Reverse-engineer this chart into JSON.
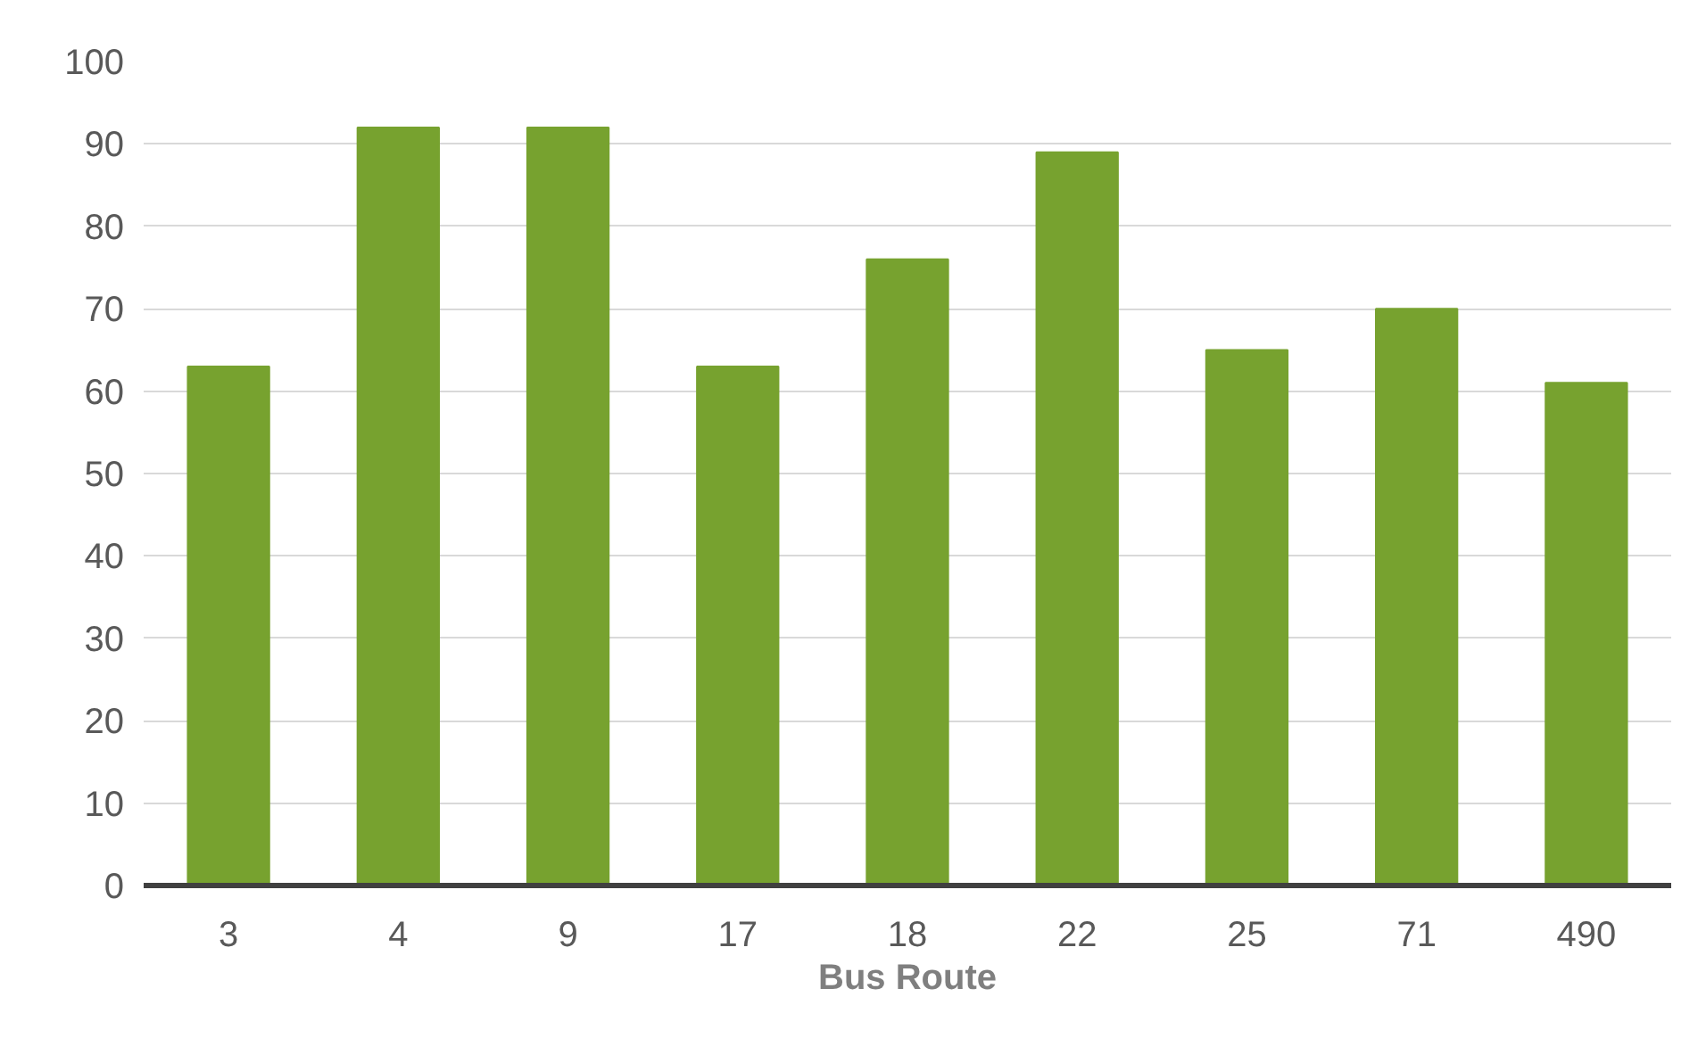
{
  "chart_data": {
    "type": "bar",
    "xlabel": "Bus Route",
    "categories": [
      "3",
      "4",
      "9",
      "17",
      "18",
      "22",
      "25",
      "71",
      "490"
    ],
    "values": [
      63,
      92,
      92,
      63,
      76,
      89,
      65,
      70,
      61
    ],
    "color": "#77a22f",
    "ylim": [
      0,
      100
    ],
    "yticks": [
      0,
      10,
      20,
      30,
      40,
      50,
      60,
      70,
      80,
      90,
      100
    ],
    "grid": "y"
  }
}
